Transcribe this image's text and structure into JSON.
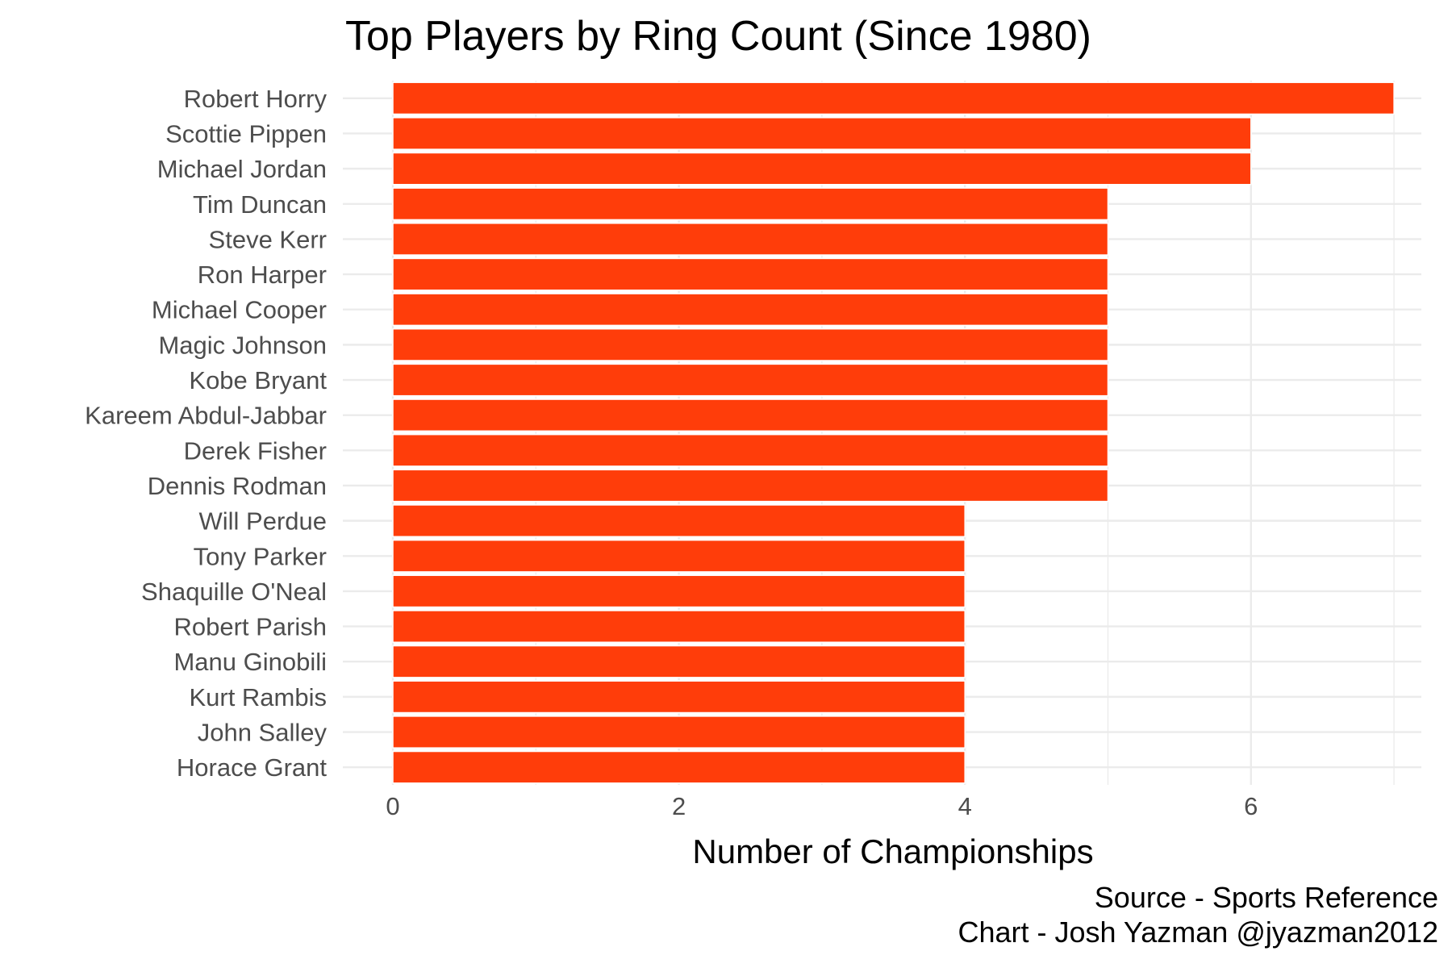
{
  "chart_data": {
    "type": "bar",
    "orientation": "horizontal",
    "title": "Top Players by Ring Count (Since 1980)",
    "xlabel": "Number of Championships",
    "ylabel": "",
    "xlim": [
      0,
      7
    ],
    "x_ticks": [
      0,
      2,
      4,
      6
    ],
    "x_minor_ticks": [
      1,
      3,
      5,
      7
    ],
    "grid": true,
    "legend": "none",
    "categories": [
      "Robert Horry",
      "Scottie Pippen",
      "Michael Jordan",
      "Tim Duncan",
      "Steve Kerr",
      "Ron Harper",
      "Michael Cooper",
      "Magic Johnson",
      "Kobe Bryant",
      "Kareem Abdul-Jabbar",
      "Derek Fisher",
      "Dennis Rodman",
      "Will Perdue",
      "Tony Parker",
      "Shaquille O'Neal",
      "Robert Parish",
      "Manu Ginobili",
      "Kurt Rambis",
      "John Salley",
      "Horace Grant"
    ],
    "values": [
      7,
      6,
      6,
      5,
      5,
      5,
      5,
      5,
      5,
      5,
      5,
      5,
      4,
      4,
      4,
      4,
      4,
      4,
      4,
      4
    ],
    "caption": [
      "Source - Sports Reference",
      "Chart - Josh Yazman @jyazman2012"
    ],
    "colors": {
      "bar": "#ff3d0a",
      "bar_outline": "#ffffff",
      "grid": "#ebebeb",
      "tick_text": "#4d4d4d",
      "text": "#000000",
      "background": "#ffffff"
    }
  }
}
